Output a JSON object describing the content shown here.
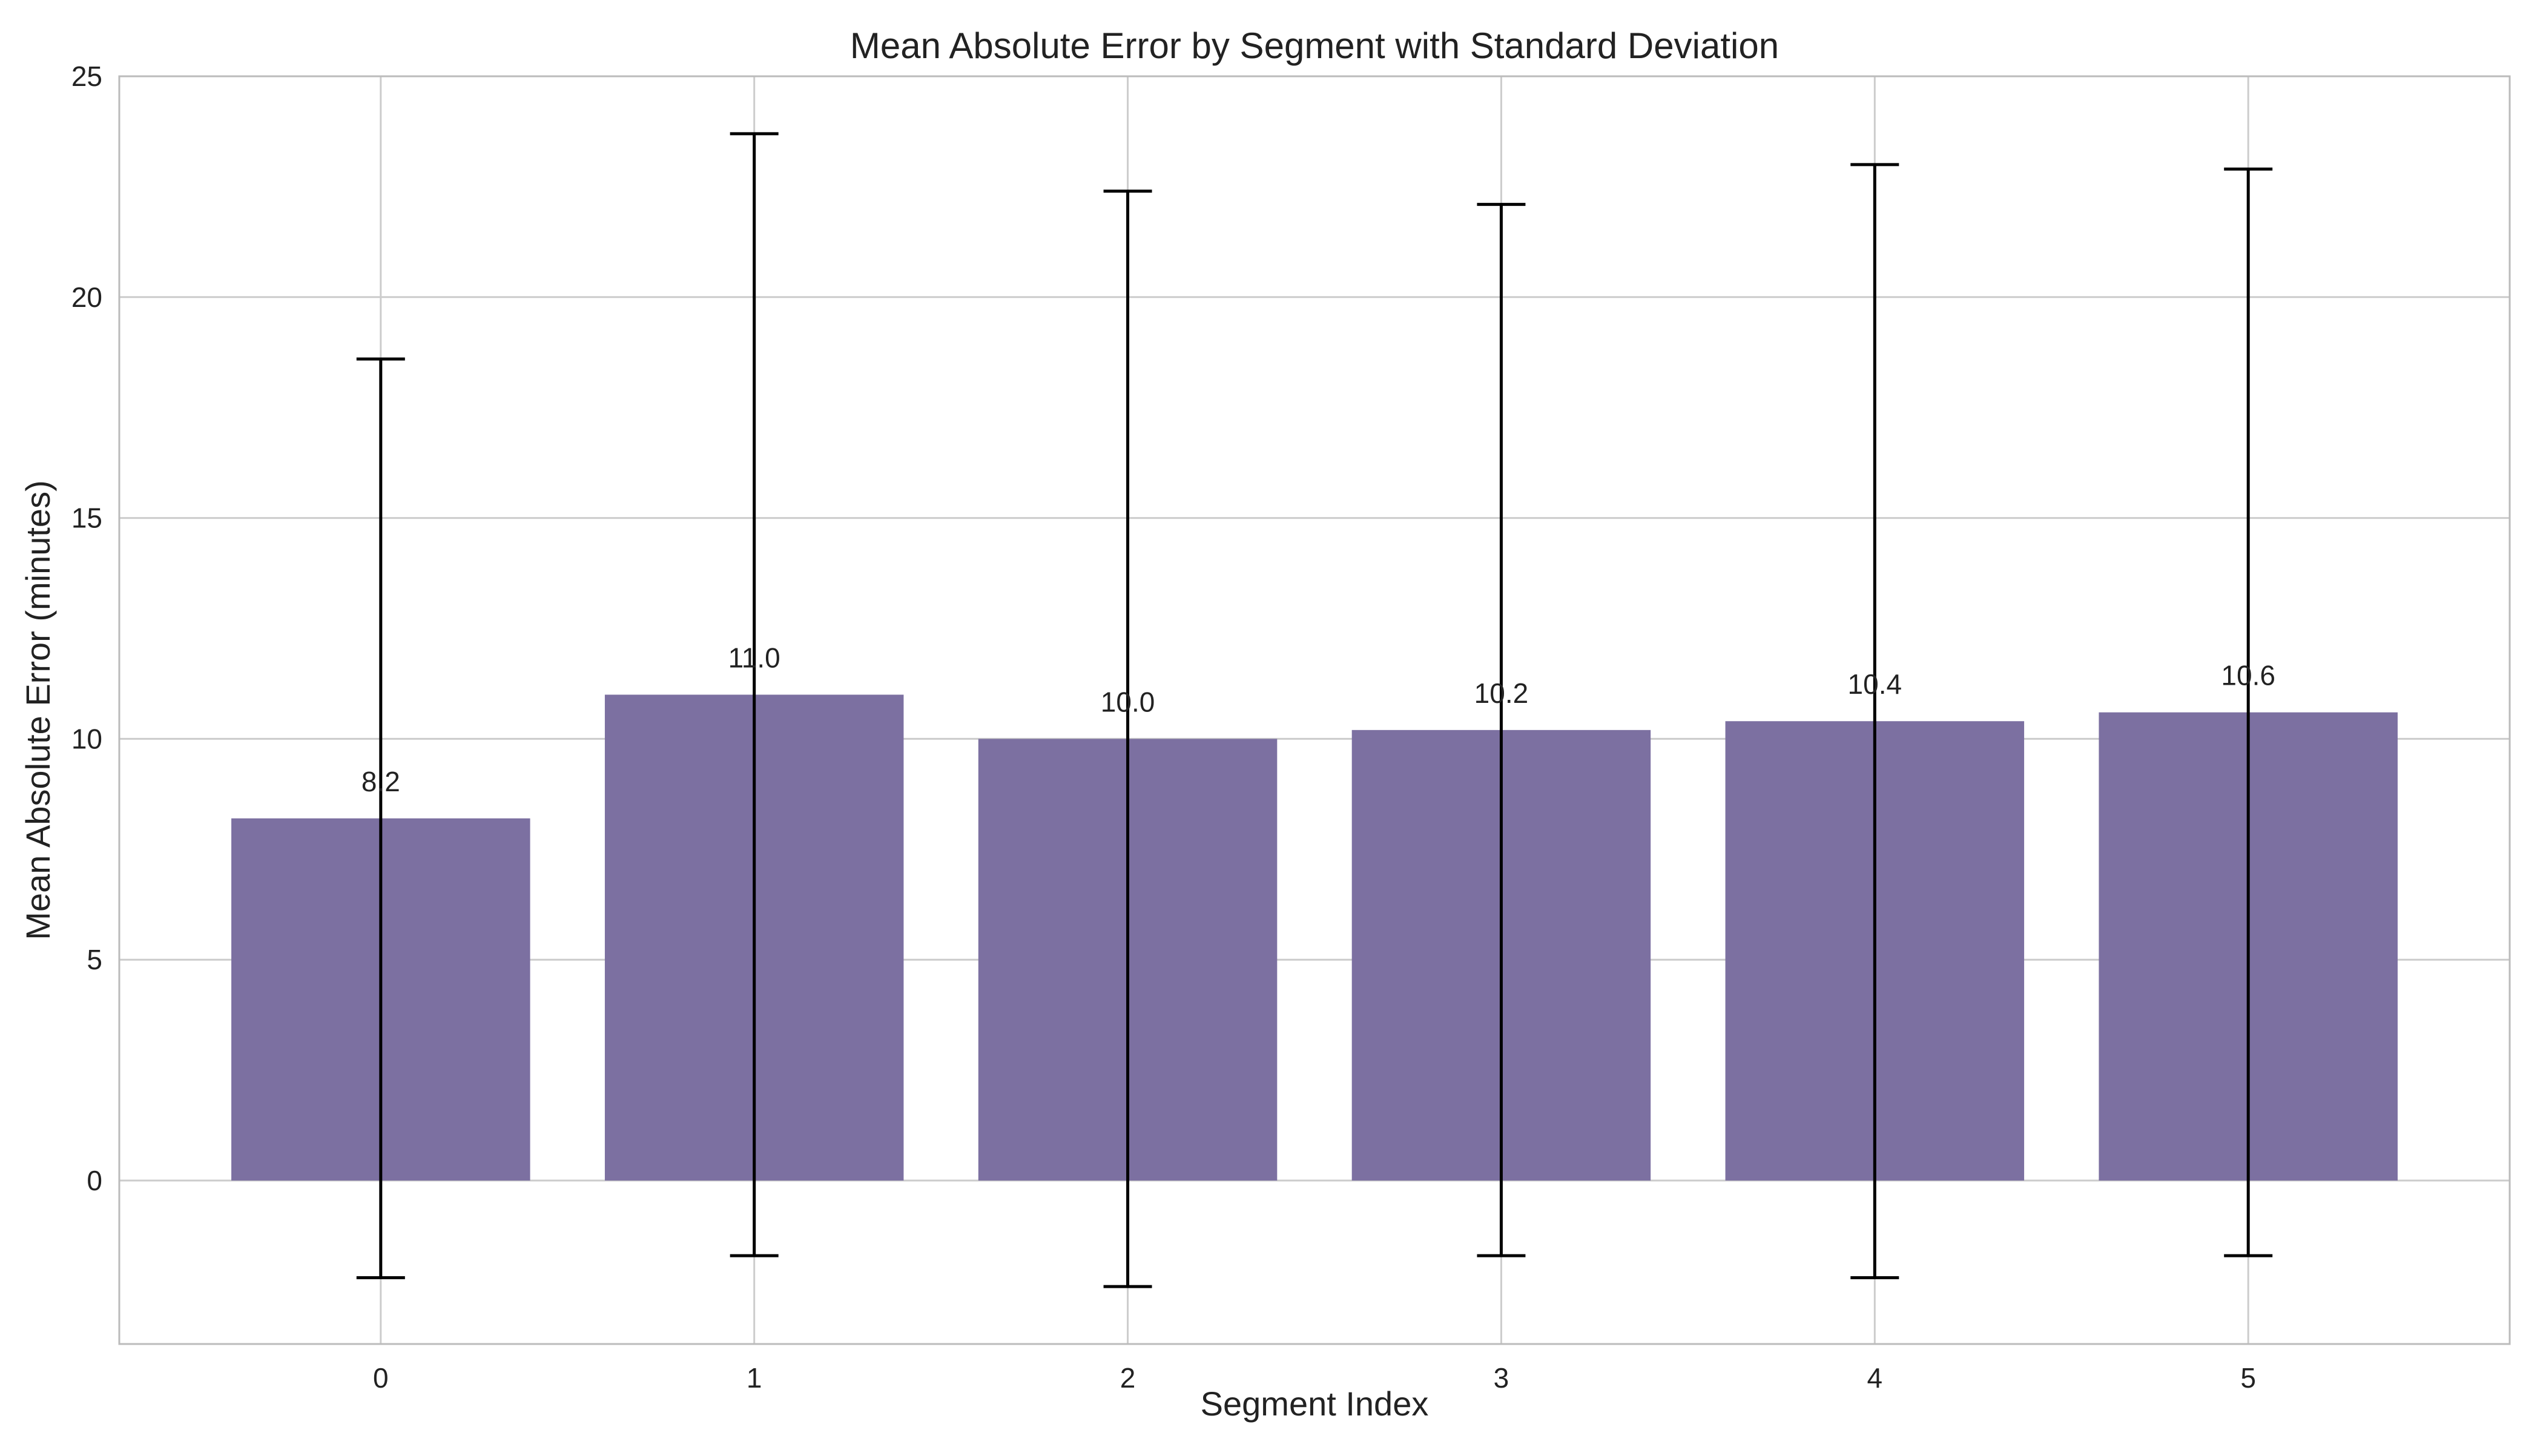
{
  "chart_data": {
    "type": "bar",
    "title": "Mean Absolute Error by Segment with Standard Deviation",
    "xlabel": "Segment Index",
    "ylabel": "Mean Absolute Error (minutes)",
    "categories": [
      "0",
      "1",
      "2",
      "3",
      "4",
      "5"
    ],
    "values": [
      8.2,
      11.0,
      10.0,
      10.2,
      10.4,
      10.6
    ],
    "value_labels": [
      "8.2",
      "11.0",
      "10.0",
      "10.2",
      "10.4",
      "10.6"
    ],
    "error_std": [
      10.4,
      12.7,
      12.4,
      11.9,
      12.6,
      12.3
    ],
    "ylim": [
      -3.7,
      25
    ],
    "yticks": [
      0,
      5,
      10,
      15,
      20,
      25
    ],
    "grid": true,
    "colors": {
      "bar": "#7c70a1",
      "error": "#000000",
      "grid": "#cccccc",
      "spine": "#bbbbbb"
    }
  }
}
